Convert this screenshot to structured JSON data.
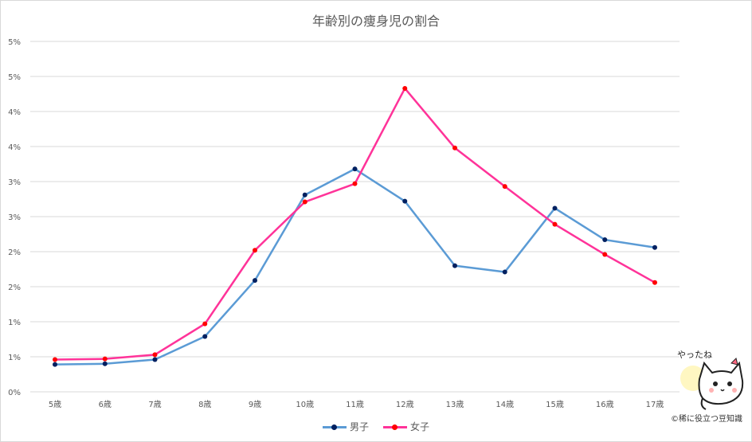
{
  "title": "年齢別の痩身児の割合",
  "credit": "©稀に役立つ豆知識",
  "mascot": {
    "speech": "やったね",
    "icon": "cat-mascot-icon"
  },
  "colors": {
    "male": "#5b9bd5",
    "male_marker": "#002060",
    "female": "#ff3399",
    "female_marker": "#ff0000",
    "grid": "#d9d9d9",
    "text": "#595959"
  },
  "legend": [
    {
      "label": "男子",
      "series": 0
    },
    {
      "label": "女子",
      "series": 1
    }
  ],
  "chart_data": {
    "type": "line",
    "title": "年齢別の痩身児の割合",
    "categories": [
      "5歳",
      "6歳",
      "7歳",
      "8歳",
      "9歳",
      "10歳",
      "11歳",
      "12歳",
      "13歳",
      "14歳",
      "15歳",
      "16歳",
      "17歳"
    ],
    "y_tick_labels": [
      "0%",
      "1%",
      "1%",
      "2%",
      "2%",
      "3%",
      "3%",
      "4%",
      "4%",
      "5%",
      "5%"
    ],
    "ylim": [
      0,
      5
    ],
    "grid": true,
    "legend_position": "bottom",
    "series": [
      {
        "name": "男子",
        "values": [
          0.39,
          0.4,
          0.46,
          0.79,
          1.59,
          2.81,
          3.18,
          2.72,
          1.8,
          1.71,
          2.62,
          2.17,
          2.06
        ]
      },
      {
        "name": "女子",
        "values": [
          0.46,
          0.47,
          0.53,
          0.97,
          2.02,
          2.71,
          2.97,
          4.33,
          3.48,
          2.93,
          2.39,
          1.96,
          1.56
        ]
      }
    ]
  }
}
